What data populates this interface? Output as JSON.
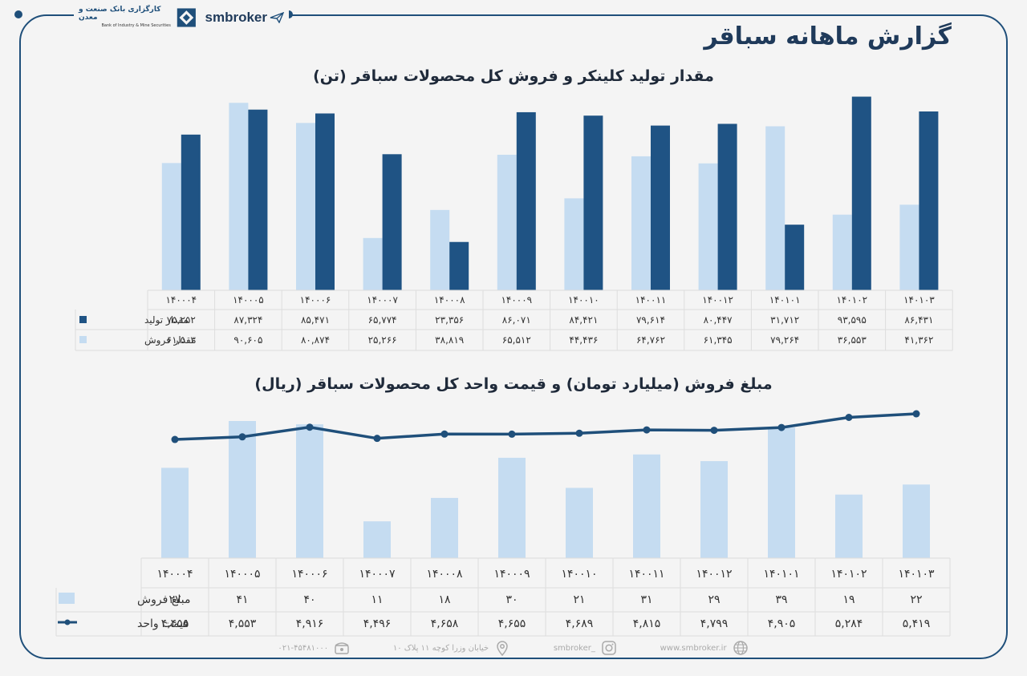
{
  "header": {
    "title": "گزارش ماهانه سباقر",
    "bank_name": "کارگزاری بانک صنعت و معدن",
    "bank_name_en": "Bank of Industry & Mine Securities",
    "brand": "smbroker"
  },
  "footer": {
    "phone": "۰۲۱-۴۵۴۸۱۰۰۰",
    "address": "خیابان وزرا کوچه ۱۱ پلاک ۱۰",
    "instagram": "smbroker_",
    "website": "www.smbroker.ir"
  },
  "colors": {
    "production": "#1f5384",
    "sales": "#c5dcf1",
    "price_line": "#1f4f7a",
    "frame": "#1f4f7a"
  },
  "chart_data": [
    {
      "type": "bar",
      "title": "مقدار تولید کلینکر و فروش کل محصولات سباقر (تن)",
      "categories": [
        "۱۴۰۰۰۴",
        "۱۴۰۰۰۵",
        "۱۴۰۰۰۶",
        "۱۴۰۰۰۷",
        "۱۴۰۰۰۸",
        "۱۴۰۰۰۹",
        "۱۴۰۰۱۰",
        "۱۴۰۰۱۱",
        "۱۴۰۰۱۲",
        "۱۴۰۱۰۱",
        "۱۴۰۱۰۲",
        "۱۴۰۱۰۳"
      ],
      "series": [
        {
          "name": "مقدار تولید",
          "values": [
            75252,
            87324,
            85471,
            65774,
            23356,
            86071,
            84421,
            79614,
            80447,
            31712,
            93595,
            86431
          ],
          "labels": [
            "۷۵,۲۵۲",
            "۸۷,۳۲۴",
            "۸۵,۴۷۱",
            "۶۵,۷۷۴",
            "۲۳,۳۵۶",
            "۸۶,۰۷۱",
            "۸۴,۴۲۱",
            "۷۹,۶۱۴",
            "۸۰,۴۴۷",
            "۳۱,۷۱۲",
            "۹۳,۵۹۵",
            "۸۶,۴۳۱"
          ]
        },
        {
          "name": "مقدار فروش",
          "values": [
            61503,
            90605,
            80874,
            25266,
            38819,
            65512,
            44436,
            64762,
            61345,
            79264,
            36553,
            41362
          ],
          "labels": [
            "۶۱,۵۰۳",
            "۹۰,۶۰۵",
            "۸۰,۸۷۴",
            "۲۵,۲۶۶",
            "۳۸,۸۱۹",
            "۶۵,۵۱۲",
            "۴۴,۴۳۶",
            "۶۴,۷۶۲",
            "۶۱,۳۴۵",
            "۷۹,۲۶۴",
            "۳۶,۵۵۳",
            "۴۱,۳۶۲"
          ]
        }
      ],
      "ylim": [
        0,
        100000
      ],
      "grid": false,
      "legend": "data-table-left"
    },
    {
      "type": "bar",
      "title": "مبلغ فروش (میلیارد تومان) و قیمت واحد کل محصولات سباقر (ریال)",
      "categories": [
        "۱۴۰۰۰۴",
        "۱۴۰۰۰۵",
        "۱۴۰۰۰۶",
        "۱۴۰۰۰۷",
        "۱۴۰۰۰۸",
        "۱۴۰۰۰۹",
        "۱۴۰۰۱۰",
        "۱۴۰۰۱۱",
        "۱۴۰۰۱۲",
        "۱۴۰۱۰۱",
        "۱۴۰۱۰۲",
        "۱۴۰۱۰۳"
      ],
      "series": [
        {
          "name": "مبلغ فروش",
          "kind": "bar",
          "values": [
            27,
            41,
            40,
            11,
            18,
            30,
            21,
            31,
            29,
            39,
            19,
            22
          ],
          "labels": [
            "۲۷",
            "۴۱",
            "۴۰",
            "۱۱",
            "۱۸",
            "۳۰",
            "۲۱",
            "۳۱",
            "۲۹",
            "۳۹",
            "۱۹",
            "۲۲"
          ]
        },
        {
          "name": "قیمت واحد",
          "kind": "line",
          "values": [
            4455,
            4553,
            4916,
            4496,
            4658,
            4655,
            4689,
            4815,
            4799,
            4905,
            5284,
            5419
          ],
          "labels": [
            "۴,۴۵۵",
            "۴,۵۵۳",
            "۴,۹۱۶",
            "۴,۴۹۶",
            "۴,۶۵۸",
            "۴,۶۵۵",
            "۴,۶۸۹",
            "۴,۸۱۵",
            "۴,۷۹۹",
            "۴,۹۰۵",
            "۵,۲۸۴",
            "۵,۴۱۹"
          ]
        }
      ],
      "ylim_bar": [
        0,
        41
      ],
      "ylim_line": [
        0,
        5600
      ],
      "grid": false,
      "legend": "data-table-left"
    }
  ]
}
